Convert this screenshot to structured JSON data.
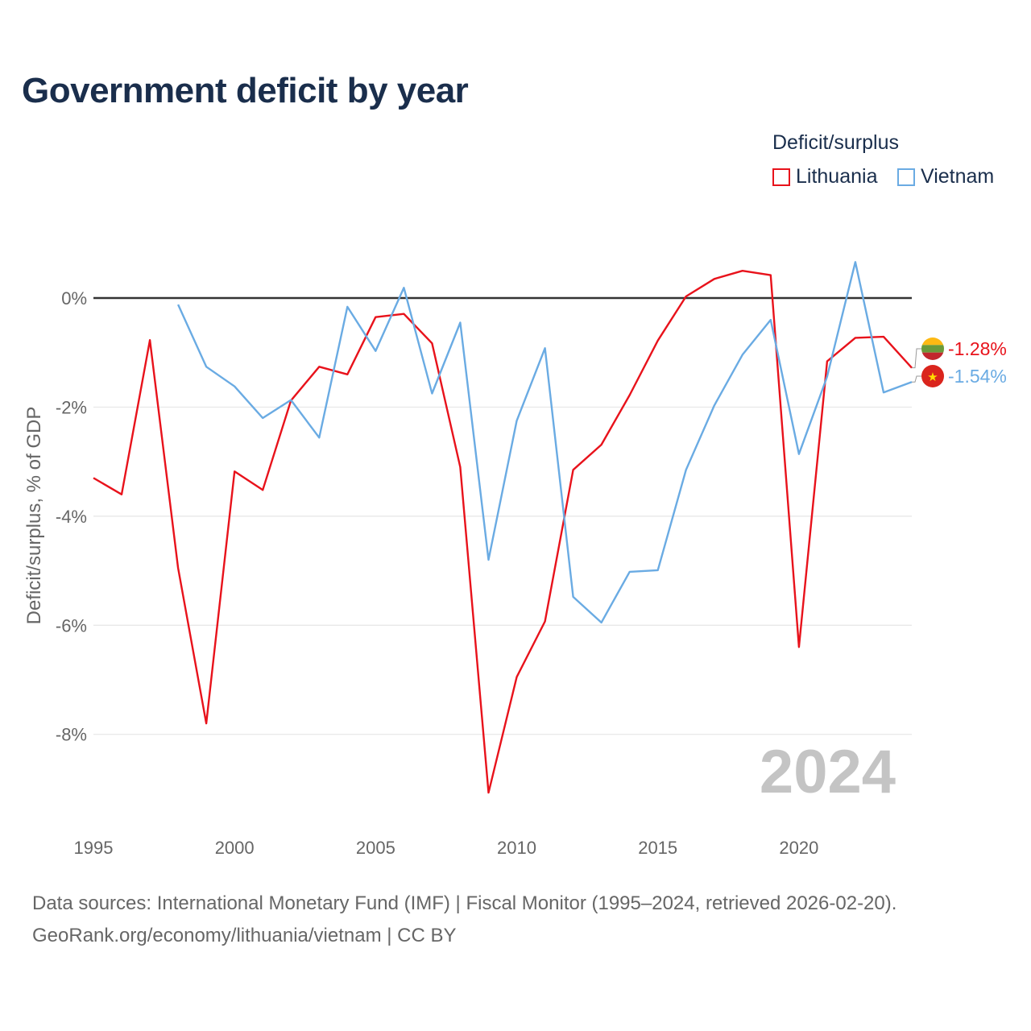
{
  "chart_data": {
    "type": "line",
    "title": "Government deficit by year",
    "ylabel": "Deficit/surplus, % of GDP",
    "xlabel": "",
    "xlim": [
      1995,
      2024
    ],
    "ylim": [
      -9.6,
      1.3
    ],
    "yticks": [
      0,
      -2,
      -4,
      -6,
      -8
    ],
    "ytick_labels": [
      "0%",
      "-2%",
      "-4%",
      "-6%",
      "-8%"
    ],
    "xticks": [
      1995,
      2000,
      2005,
      2010,
      2015,
      2020
    ],
    "xtick_labels": [
      "1995",
      "2000",
      "2005",
      "2010",
      "2015",
      "2020"
    ],
    "legend_title": "Deficit/surplus",
    "year_watermark": "2024",
    "series": [
      {
        "name": "Lithuania",
        "color": "#e8121b",
        "end_label": "-1.28%",
        "flag_icon": "lithuania-flag-icon",
        "x": [
          1995,
          1996,
          1997,
          1998,
          1999,
          2000,
          2001,
          2002,
          2003,
          2004,
          2005,
          2006,
          2007,
          2008,
          2009,
          2010,
          2011,
          2012,
          2013,
          2014,
          2015,
          2016,
          2017,
          2018,
          2019,
          2020,
          2021,
          2022,
          2023,
          2024
        ],
        "values": [
          -3.3,
          -3.6,
          -0.77,
          -4.95,
          -7.8,
          -3.18,
          -3.52,
          -1.88,
          -1.26,
          -1.4,
          -0.35,
          -0.29,
          -0.83,
          -3.1,
          -9.07,
          -6.95,
          -5.93,
          -3.15,
          -2.69,
          -1.78,
          -0.78,
          0.03,
          0.35,
          0.5,
          0.42,
          -6.4,
          -1.16,
          -0.73,
          -0.71,
          -1.28
        ]
      },
      {
        "name": "Vietnam",
        "color": "#6aabe3",
        "end_label": "-1.54%",
        "flag_icon": "vietnam-flag-icon",
        "x": [
          1998,
          1999,
          2000,
          2001,
          2002,
          2003,
          2004,
          2005,
          2006,
          2007,
          2008,
          2009,
          2010,
          2011,
          2012,
          2013,
          2014,
          2015,
          2016,
          2017,
          2018,
          2019,
          2020,
          2021,
          2022,
          2023,
          2024
        ],
        "values": [
          -0.12,
          -1.26,
          -1.62,
          -2.2,
          -1.87,
          -2.56,
          -0.16,
          -0.97,
          0.19,
          -1.75,
          -0.45,
          -4.8,
          -2.25,
          -0.92,
          -5.48,
          -5.95,
          -5.02,
          -4.99,
          -3.15,
          -1.97,
          -1.04,
          -0.4,
          -2.86,
          -1.44,
          0.66,
          -1.73,
          -1.54
        ]
      }
    ]
  },
  "footer": {
    "sources": "Data sources: International Monetary Fund (IMF) | Fiscal Monitor (1995–2024, retrieved 2026-02-20).",
    "credit": "GeoRank.org/economy/lithuania/vietnam | CC BY"
  }
}
